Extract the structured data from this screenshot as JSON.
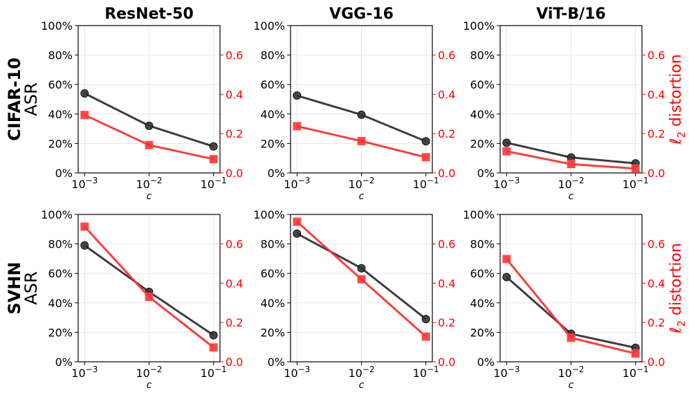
{
  "colors": {
    "asr": "#333333",
    "l2": "#ff3333",
    "grid": "#e6e6e6",
    "axis": "#000000",
    "right_axis": "#ff0000"
  },
  "row_labels": [
    {
      "dataset": "CIFAR-10",
      "metric": "ASR"
    },
    {
      "dataset": "SVHN",
      "metric": "ASR"
    }
  ],
  "right_axis_label": {
    "prefix": "ℓ",
    "sub": "2",
    "suffix": " distortion"
  },
  "chart_data": [
    {
      "type": "line",
      "row": 0,
      "col": 0,
      "title": "ResNet-50",
      "xlabel": "c",
      "x": [
        0.001,
        0.01,
        0.1
      ],
      "xscale": "log",
      "xticklabels": [
        [
          "10",
          "−3"
        ],
        [
          "10",
          "−2"
        ],
        [
          "10",
          "−1"
        ]
      ],
      "left_axis": {
        "ylim": [
          0,
          100
        ],
        "ticks": [
          0,
          20,
          40,
          60,
          80,
          100
        ],
        "ticklabels": [
          "0%",
          "20%",
          "40%",
          "60%",
          "80%",
          "100%"
        ]
      },
      "right_axis": {
        "ylim": [
          0,
          0.75
        ],
        "ticks": [
          0.0,
          0.2,
          0.4,
          0.6
        ],
        "ticklabels": [
          "0.0",
          "0.2",
          "0.4",
          "0.6"
        ]
      },
      "series": [
        {
          "name": "ASR",
          "axis": "left",
          "marker": "circle",
          "values": [
            54,
            32,
            18
          ]
        },
        {
          "name": "l2 distortion",
          "axis": "right",
          "marker": "square",
          "values": [
            0.295,
            0.142,
            0.07
          ]
        }
      ]
    },
    {
      "type": "line",
      "row": 0,
      "col": 1,
      "title": "VGG-16",
      "xlabel": "c",
      "x": [
        0.001,
        0.01,
        0.1
      ],
      "xscale": "log",
      "xticklabels": [
        [
          "10",
          "−3"
        ],
        [
          "10",
          "−2"
        ],
        [
          "10",
          "−1"
        ]
      ],
      "left_axis": {
        "ylim": [
          0,
          100
        ],
        "ticks": [
          0,
          20,
          40,
          60,
          80,
          100
        ],
        "ticklabels": [
          "0%",
          "20%",
          "40%",
          "60%",
          "80%",
          "100%"
        ]
      },
      "right_axis": {
        "ylim": [
          0,
          0.75
        ],
        "ticks": [
          0.0,
          0.2,
          0.4,
          0.6
        ],
        "ticklabels": [
          "0.0",
          "0.2",
          "0.4",
          "0.6"
        ]
      },
      "series": [
        {
          "name": "ASR",
          "axis": "left",
          "marker": "circle",
          "values": [
            52.5,
            39.5,
            21.5
          ]
        },
        {
          "name": "l2 distortion",
          "axis": "right",
          "marker": "square",
          "values": [
            0.238,
            0.162,
            0.08
          ]
        }
      ]
    },
    {
      "type": "line",
      "row": 0,
      "col": 2,
      "title": "ViT-B/16",
      "xlabel": "c",
      "x": [
        0.001,
        0.01,
        0.1
      ],
      "xscale": "log",
      "xticklabels": [
        [
          "10",
          "−3"
        ],
        [
          "10",
          "−2"
        ],
        [
          "10",
          "−1"
        ]
      ],
      "left_axis": {
        "ylim": [
          0,
          100
        ],
        "ticks": [
          0,
          20,
          40,
          60,
          80,
          100
        ],
        "ticklabels": [
          "0%",
          "20%",
          "40%",
          "60%",
          "80%",
          "100%"
        ]
      },
      "right_axis": {
        "ylim": [
          0,
          0.75
        ],
        "ticks": [
          0.0,
          0.2,
          0.4,
          0.6
        ],
        "ticklabels": [
          "0.0",
          "0.2",
          "0.4",
          "0.6"
        ]
      },
      "series": [
        {
          "name": "ASR",
          "axis": "left",
          "marker": "circle",
          "values": [
            20.5,
            10.5,
            6.5
          ]
        },
        {
          "name": "l2 distortion",
          "axis": "right",
          "marker": "square",
          "values": [
            0.11,
            0.045,
            0.022
          ]
        }
      ]
    },
    {
      "type": "line",
      "row": 1,
      "col": 0,
      "title": "",
      "xlabel": "c",
      "x": [
        0.001,
        0.01,
        0.1
      ],
      "xscale": "log",
      "xticklabels": [
        [
          "10",
          "−3"
        ],
        [
          "10",
          "−2"
        ],
        [
          "10",
          "−1"
        ]
      ],
      "left_axis": {
        "ylim": [
          0,
          100
        ],
        "ticks": [
          0,
          20,
          40,
          60,
          80,
          100
        ],
        "ticklabels": [
          "0%",
          "20%",
          "40%",
          "60%",
          "80%",
          "100%"
        ]
      },
      "right_axis": {
        "ylim": [
          0,
          0.75
        ],
        "ticks": [
          0.0,
          0.2,
          0.4,
          0.6
        ],
        "ticklabels": [
          "0.0",
          "0.2",
          "0.4",
          "0.6"
        ]
      },
      "series": [
        {
          "name": "ASR",
          "axis": "left",
          "marker": "circle",
          "values": [
            79,
            47.5,
            18
          ]
        },
        {
          "name": "l2 distortion",
          "axis": "right",
          "marker": "square",
          "values": [
            0.688,
            0.33,
            0.073
          ]
        }
      ]
    },
    {
      "type": "line",
      "row": 1,
      "col": 1,
      "title": "",
      "xlabel": "c",
      "x": [
        0.001,
        0.01,
        0.1
      ],
      "xscale": "log",
      "xticklabels": [
        [
          "10",
          "−3"
        ],
        [
          "10",
          "−2"
        ],
        [
          "10",
          "−1"
        ]
      ],
      "left_axis": {
        "ylim": [
          0,
          100
        ],
        "ticks": [
          0,
          20,
          40,
          60,
          80,
          100
        ],
        "ticklabels": [
          "0%",
          "20%",
          "40%",
          "60%",
          "80%",
          "100%"
        ]
      },
      "right_axis": {
        "ylim": [
          0,
          0.75
        ],
        "ticks": [
          0.0,
          0.2,
          0.4,
          0.6
        ],
        "ticklabels": [
          "0.0",
          "0.2",
          "0.4",
          "0.6"
        ]
      },
      "series": [
        {
          "name": "ASR",
          "axis": "left",
          "marker": "circle",
          "values": [
            87,
            63.5,
            29
          ]
        },
        {
          "name": "l2 distortion",
          "axis": "right",
          "marker": "square",
          "values": [
            0.713,
            0.42,
            0.128
          ]
        }
      ]
    },
    {
      "type": "line",
      "row": 1,
      "col": 2,
      "title": "",
      "xlabel": "c",
      "x": [
        0.001,
        0.01,
        0.1
      ],
      "xscale": "log",
      "xticklabels": [
        [
          "10",
          "−3"
        ],
        [
          "10",
          "−2"
        ],
        [
          "10",
          "−1"
        ]
      ],
      "left_axis": {
        "ylim": [
          0,
          100
        ],
        "ticks": [
          0,
          20,
          40,
          60,
          80,
          100
        ],
        "ticklabels": [
          "0%",
          "20%",
          "40%",
          "60%",
          "80%",
          "100%"
        ]
      },
      "right_axis": {
        "ylim": [
          0,
          0.75
        ],
        "ticks": [
          0.0,
          0.2,
          0.4,
          0.6
        ],
        "ticklabels": [
          "0.0",
          "0.2",
          "0.4",
          "0.6"
        ]
      },
      "series": [
        {
          "name": "ASR",
          "axis": "left",
          "marker": "circle",
          "values": [
            57.5,
            19,
            9.5
          ]
        },
        {
          "name": "l2 distortion",
          "axis": "right",
          "marker": "square",
          "values": [
            0.523,
            0.122,
            0.042
          ]
        }
      ]
    }
  ]
}
